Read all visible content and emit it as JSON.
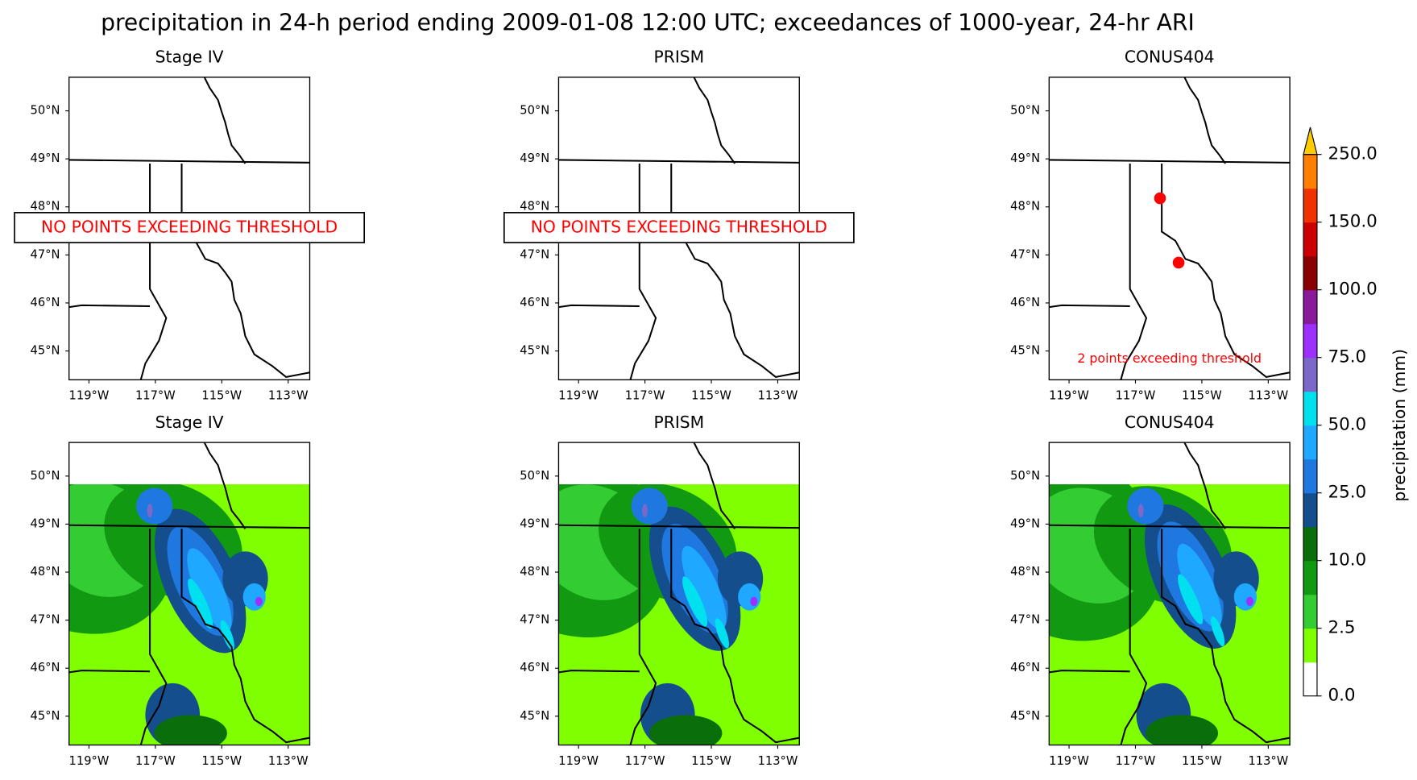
{
  "title": "precipitation in 24-h period ending 2009-01-08 12:00 UTC; exceedances of 1000-year, 24-hr ARI",
  "lonlim": [
    -119.6,
    -112.35
  ],
  "latlim": [
    44.4,
    50.7
  ],
  "lon_ticks": [
    {
      "value": -119,
      "label": "119°W"
    },
    {
      "value": -117,
      "label": "117°W"
    },
    {
      "value": -115,
      "label": "115°W"
    },
    {
      "value": -113,
      "label": "113°W"
    }
  ],
  "lat_ticks": [
    {
      "value": 45,
      "label": "45°N"
    },
    {
      "value": 46,
      "label": "46°N"
    },
    {
      "value": 47,
      "label": "47°N"
    },
    {
      "value": 48,
      "label": "48°N"
    },
    {
      "value": 49,
      "label": "49°N"
    },
    {
      "value": 50,
      "label": "50°N"
    }
  ],
  "panels": [
    {
      "title": "Stage IV",
      "annotation": "NO POINTS EXCEEDING THRESHOLD"
    },
    {
      "title": "PRISM",
      "annotation": "NO POINTS EXCEEDING THRESHOLD"
    },
    {
      "title": "CONUS404",
      "annotation": "2 points exceeding threshold",
      "points": [
        {
          "lon": -116.26,
          "lat": 48.18
        },
        {
          "lon": -115.7,
          "lat": 46.84
        }
      ]
    },
    {
      "title": "Stage IV"
    },
    {
      "title": "PRISM"
    },
    {
      "title": "CONUS404"
    }
  ],
  "colorbar": {
    "label": "precipitation (mm)",
    "ticks": [
      {
        "value": 0,
        "label": "0.0"
      },
      {
        "value": 2.5,
        "label": "2.5"
      },
      {
        "value": 10,
        "label": "10.0"
      },
      {
        "value": 25,
        "label": "25.0"
      },
      {
        "value": 50,
        "label": "50.0"
      },
      {
        "value": 75,
        "label": "75.0"
      },
      {
        "value": 100,
        "label": "100.0"
      },
      {
        "value": 150,
        "label": "150.0"
      },
      {
        "value": 250,
        "label": "250.0"
      }
    ],
    "colors": [
      "#ffffff",
      "#80ff00",
      "#33cc33",
      "#119a11",
      "#0a6e0a",
      "#154e8c",
      "#1e78e0",
      "#1ea8ff",
      "#00e0ee",
      "#7b68c8",
      "#9b30ff",
      "#8b1a9b",
      "#8b0000",
      "#cc0000",
      "#ee3300",
      "#ff8000",
      "#ffcc00"
    ]
  }
}
